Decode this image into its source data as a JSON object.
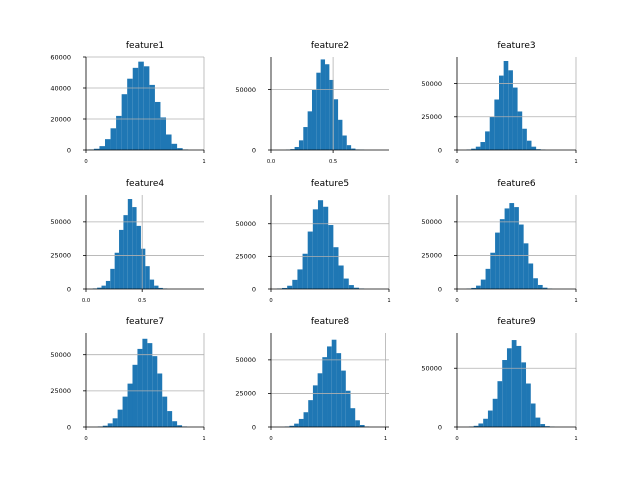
{
  "figure": {
    "bar_color": "#1f77b4",
    "grid_color": "#b0b0b0"
  },
  "chart_data": [
    {
      "type": "bar",
      "title": "feature1",
      "bins": 20,
      "xlim": [
        0,
        1
      ],
      "ylim": [
        0,
        60000
      ],
      "yticks": [
        0,
        20000,
        40000,
        60000
      ],
      "ytick_labels": [
        "0",
        "20000",
        "40000",
        "60000"
      ],
      "xticks": [
        0,
        1
      ],
      "xtick_labels": [
        "0",
        "1"
      ],
      "grid": true,
      "hist_range": [
        0.02,
        0.96
      ],
      "values": [
        300,
        800,
        2500,
        7000,
        14000,
        22000,
        36000,
        46000,
        53000,
        57000,
        54000,
        42000,
        31000,
        21000,
        10000,
        4000,
        1200,
        300,
        0,
        0
      ]
    },
    {
      "type": "bar",
      "title": "feature2",
      "bins": 20,
      "xlim": [
        0,
        0.95
      ],
      "ylim": [
        0,
        77000
      ],
      "yticks": [
        0,
        50000
      ],
      "ytick_labels": [
        "0",
        "50000"
      ],
      "xticks": [
        0,
        0.5
      ],
      "xtick_labels": [
        "0.0",
        "0.5"
      ],
      "grid": true,
      "hist_range": [
        0.12,
        0.82
      ],
      "values": [
        200,
        700,
        2500,
        8000,
        19000,
        32000,
        50000,
        64000,
        75000,
        71000,
        58000,
        42000,
        25000,
        12000,
        4000,
        1200,
        400,
        200,
        0,
        0
      ]
    },
    {
      "type": "bar",
      "title": "feature3",
      "bins": 20,
      "xlim": [
        0,
        1
      ],
      "ylim": [
        0,
        70000
      ],
      "yticks": [
        0,
        25000,
        50000
      ],
      "ytick_labels": [
        "0",
        "25000",
        "50000"
      ],
      "xticks": [
        0,
        1
      ],
      "xtick_labels": [
        "0",
        "1"
      ],
      "grid": true,
      "hist_range": [
        0.08,
        0.86
      ],
      "values": [
        300,
        1000,
        2500,
        6000,
        14000,
        25000,
        38000,
        56000,
        67000,
        60000,
        47000,
        29000,
        16000,
        7000,
        2500,
        600,
        200,
        0,
        0,
        0
      ]
    },
    {
      "type": "bar",
      "title": "feature4",
      "bins": 20,
      "xlim": [
        0,
        1.05
      ],
      "ylim": [
        0,
        70000
      ],
      "yticks": [
        0,
        25000,
        50000
      ],
      "ytick_labels": [
        "0",
        "25000",
        "50000"
      ],
      "xticks": [
        0,
        0.5
      ],
      "xtick_labels": [
        "0.0",
        "0.5"
      ],
      "grid": true,
      "hist_range": [
        0.06,
        0.84
      ],
      "values": [
        400,
        1000,
        2500,
        6000,
        15000,
        27000,
        44000,
        55000,
        67000,
        61000,
        47000,
        30000,
        17000,
        7000,
        2500,
        800,
        300,
        0,
        0,
        0
      ]
    },
    {
      "type": "bar",
      "title": "feature5",
      "bins": 20,
      "xlim": [
        0,
        1
      ],
      "ylim": [
        0,
        72000
      ],
      "yticks": [
        0,
        25000,
        50000
      ],
      "ytick_labels": [
        "0",
        "25000",
        "50000"
      ],
      "xticks": [
        0,
        1
      ],
      "xtick_labels": [
        "0",
        "1"
      ],
      "grid": true,
      "hist_range": [
        0.05,
        0.92
      ],
      "values": [
        300,
        800,
        2500,
        7000,
        15000,
        27000,
        44000,
        61000,
        68000,
        63000,
        49000,
        32000,
        18000,
        8000,
        3000,
        1000,
        300,
        0,
        0,
        0
      ]
    },
    {
      "type": "bar",
      "title": "feature6",
      "bins": 20,
      "xlim": [
        0,
        1
      ],
      "ylim": [
        0,
        70000
      ],
      "yticks": [
        0,
        25000,
        50000
      ],
      "ytick_labels": [
        "0",
        "25000",
        "50000"
      ],
      "xticks": [
        0,
        1
      ],
      "xtick_labels": [
        "0",
        "1"
      ],
      "grid": true,
      "hist_range": [
        0.08,
        0.88
      ],
      "values": [
        200,
        800,
        2500,
        7000,
        15000,
        27000,
        42000,
        52000,
        60000,
        64000,
        61000,
        48000,
        34000,
        19000,
        8000,
        3000,
        1000,
        200,
        0,
        0
      ]
    },
    {
      "type": "bar",
      "title": "feature7",
      "bins": 20,
      "xlim": [
        0,
        1
      ],
      "ylim": [
        0,
        65000
      ],
      "yticks": [
        0,
        25000,
        50000
      ],
      "ytick_labels": [
        "0",
        "25000",
        "50000"
      ],
      "xticks": [
        0,
        1
      ],
      "xtick_labels": [
        "0",
        "1"
      ],
      "grid": true,
      "hist_range": [
        0.1,
        0.94
      ],
      "values": [
        300,
        900,
        2500,
        6000,
        12000,
        21000,
        30000,
        43000,
        54000,
        61000,
        58000,
        49000,
        37000,
        21000,
        11000,
        4000,
        1200,
        300,
        0,
        0
      ]
    },
    {
      "type": "bar",
      "title": "feature8",
      "bins": 20,
      "xlim": [
        0,
        1.03
      ],
      "ylim": [
        0,
        70000
      ],
      "yticks": [
        0,
        25000,
        50000
      ],
      "ytick_labels": [
        "0",
        "25000",
        "50000"
      ],
      "xticks": [
        0,
        1
      ],
      "xtick_labels": [
        "0",
        "1"
      ],
      "grid": true,
      "hist_range": [
        0.12,
        0.94
      ],
      "values": [
        300,
        900,
        2500,
        6000,
        11000,
        20000,
        31000,
        40000,
        52000,
        60000,
        65000,
        55000,
        42000,
        27000,
        14000,
        5000,
        1500,
        300,
        0,
        0
      ]
    },
    {
      "type": "bar",
      "title": "feature9",
      "bins": 20,
      "xlim": [
        0,
        1
      ],
      "ylim": [
        0,
        80000
      ],
      "yticks": [
        0,
        50000
      ],
      "ytick_labels": [
        "0",
        "50000"
      ],
      "xticks": [
        0,
        1
      ],
      "xtick_labels": [
        "0",
        "1"
      ],
      "grid": true,
      "hist_range": [
        0.1,
        0.9
      ],
      "values": [
        300,
        1000,
        3000,
        7000,
        14000,
        24000,
        39000,
        57000,
        67000,
        74000,
        69000,
        55000,
        37000,
        20000,
        8000,
        2500,
        700,
        200,
        0,
        0
      ]
    }
  ]
}
